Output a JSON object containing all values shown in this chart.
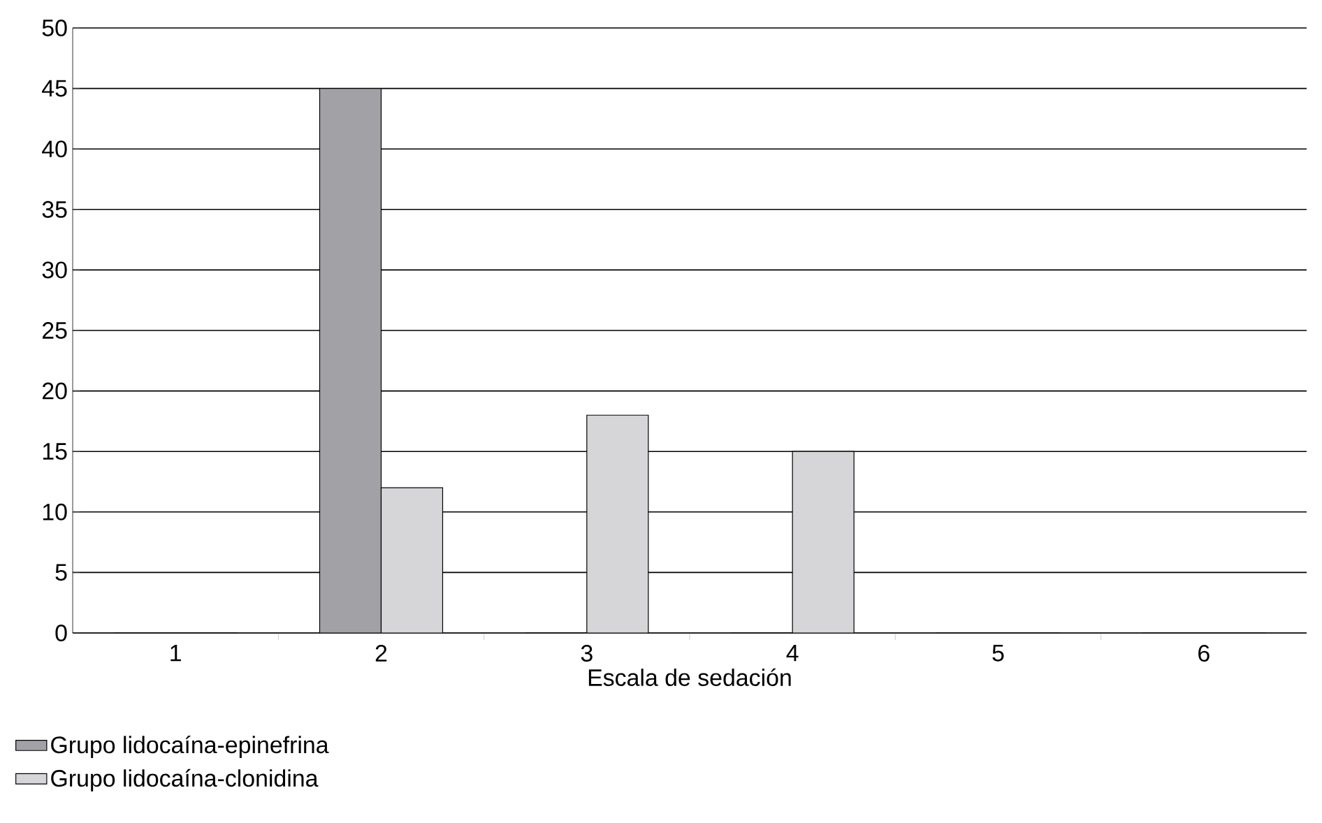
{
  "chart_data": {
    "type": "bar",
    "xlabel": "Escala de sedación",
    "categories": [
      "1",
      "2",
      "3",
      "4",
      "5",
      "6"
    ],
    "series": [
      {
        "name": "Grupo lidocaína-epinefrina",
        "color": "#a2a2a6",
        "values": [
          0,
          45,
          0,
          0,
          0,
          0
        ]
      },
      {
        "name": "Grupo lidocaína-clonidina",
        "color": "#d6d6d8",
        "values": [
          0,
          12,
          18,
          15,
          0,
          0
        ]
      }
    ],
    "ylim": [
      0,
      50
    ],
    "yticks": [
      0,
      5,
      10,
      15,
      20,
      25,
      30,
      35,
      40,
      45,
      50
    ],
    "grid": "y",
    "legend": "bottom left"
  }
}
